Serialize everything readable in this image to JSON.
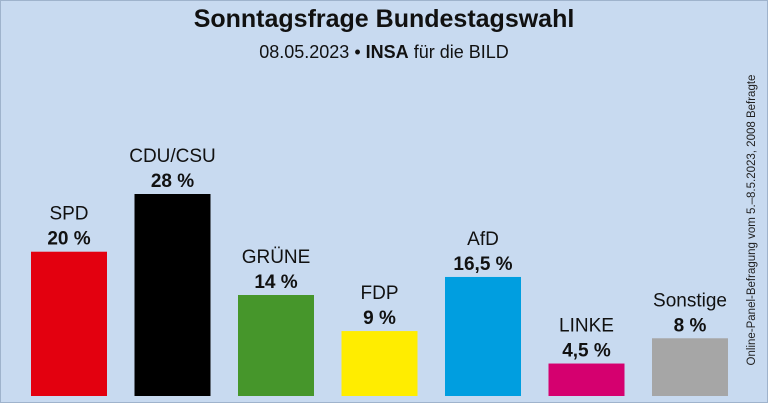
{
  "header": {
    "title": "Sonntagsfrage Bundestagswahl",
    "date": "08.05.2023",
    "bullet": "•",
    "institute": "INSA",
    "client": "für die BILD"
  },
  "footnote": "Online-Panel-Befragung vom 5.–8.5.2023, 2008 Befragte",
  "chart_data": {
    "type": "bar",
    "title": "Sonntagsfrage Bundestagswahl",
    "subtitle": "08.05.2023 • INSA für die BILD",
    "categories": [
      "SPD",
      "CDU/CSU",
      "GRÜNE",
      "FDP",
      "AfD",
      "LINKE",
      "Sonstige"
    ],
    "values": [
      20,
      28,
      14,
      9,
      16.5,
      4.5,
      8
    ],
    "value_labels": [
      "20 %",
      "28 %",
      "14 %",
      "9 %",
      "16,5 %",
      "4,5 %",
      "8 %"
    ],
    "colors": [
      "#e3000f",
      "#000000",
      "#46962b",
      "#ffed00",
      "#009ee0",
      "#d5006f",
      "#a6a6a6"
    ],
    "xlabel": "",
    "ylabel": "",
    "ylim": [
      0,
      28
    ],
    "grid": false,
    "legend": "none"
  }
}
